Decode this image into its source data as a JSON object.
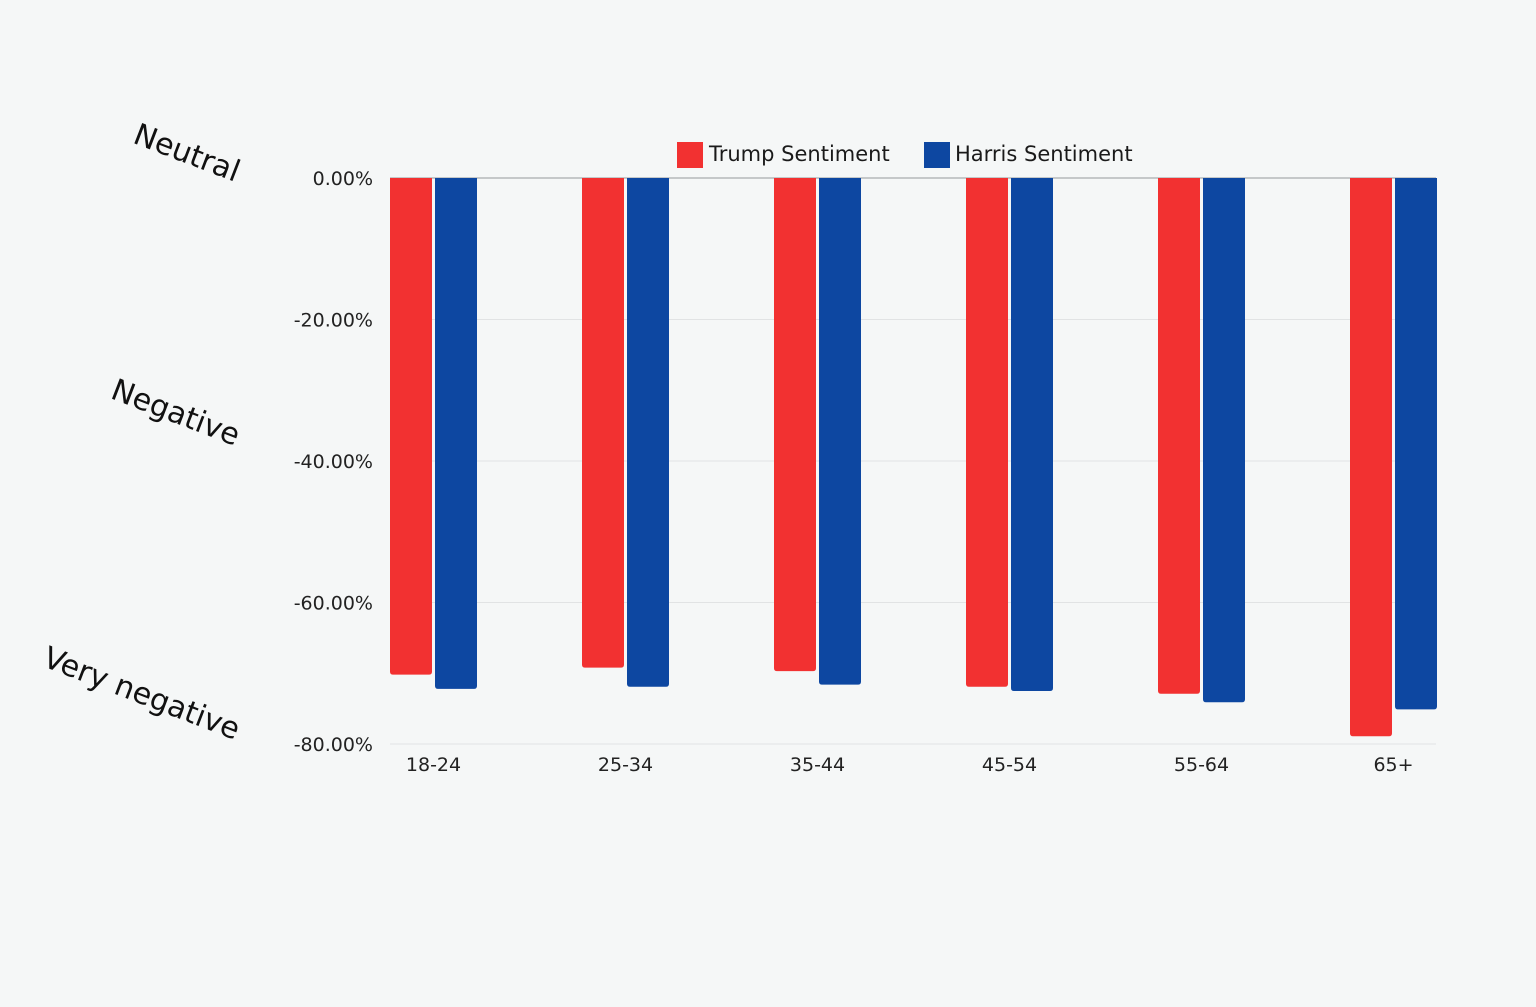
{
  "chart_data": {
    "type": "bar",
    "categories": [
      "18-24",
      "25-34",
      "35-44",
      "45-54",
      "55-64",
      "65+"
    ],
    "series": [
      {
        "name": "Trump Sentiment",
        "color": "#f23131",
        "values": [
          -70.2,
          -69.2,
          -69.7,
          -71.9,
          -72.9,
          -78.9
        ]
      },
      {
        "name": "Harris Sentiment",
        "color": "#0d47a1",
        "values": [
          -72.2,
          -71.9,
          -71.6,
          -72.5,
          -74.1,
          -75.1
        ]
      }
    ],
    "y_ticks": [
      "0.00%",
      "-20.00%",
      "-40.00%",
      "-60.00%",
      "-80.00%"
    ],
    "y_tick_values": [
      0,
      -20,
      -40,
      -60,
      -80
    ],
    "ylim": [
      -80,
      0
    ],
    "side_labels": [
      "Neutral",
      "Negative",
      "Very negative"
    ],
    "legend_position": "top-center",
    "grid": true
  }
}
